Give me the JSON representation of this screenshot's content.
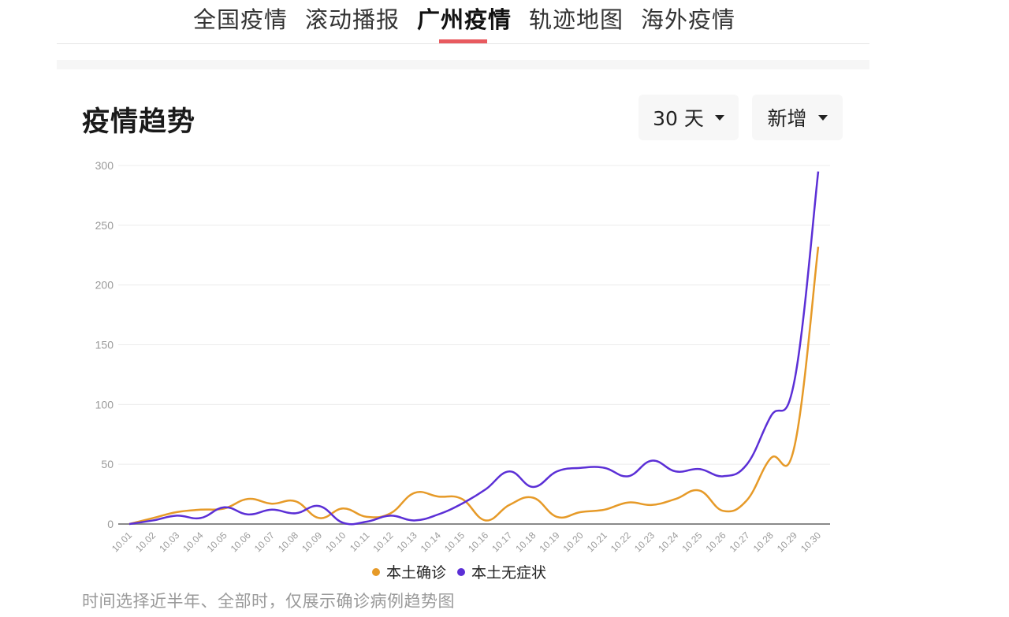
{
  "tabs": [
    {
      "label": "全国疫情",
      "active": false
    },
    {
      "label": "滚动播报",
      "active": false
    },
    {
      "label": "广州疫情",
      "active": true
    },
    {
      "label": "轨迹地图",
      "active": false
    },
    {
      "label": "海外疫情",
      "active": false
    }
  ],
  "section": {
    "title": "疫情趋势",
    "range_dropdown": "30 天",
    "type_dropdown": "新增"
  },
  "colors": {
    "confirmed": "#e69a28",
    "asymptomatic": "#5b2fd6",
    "active_tab": "#e85a5f"
  },
  "legend": [
    {
      "label": "本土确诊",
      "color": "#e69a28"
    },
    {
      "label": "本土无症状",
      "color": "#5b2fd6"
    }
  ],
  "note": "时间选择近半年、全部时，仅展示确诊病例趋势图",
  "chart_data": {
    "type": "line",
    "title": "疫情趋势",
    "xlabel": "",
    "ylabel": "",
    "ylim": [
      0,
      300
    ],
    "yticks": [
      0,
      50,
      100,
      150,
      200,
      250,
      300
    ],
    "grid": true,
    "legend_position": "bottom",
    "categories": [
      "10.01",
      "10.02",
      "10.03",
      "10.04",
      "10.05",
      "10.06",
      "10.07",
      "10.08",
      "10.09",
      "10.10",
      "10.11",
      "10.12",
      "10.13",
      "10.14",
      "10.15",
      "10.16",
      "10.17",
      "10.18",
      "10.19",
      "10.20",
      "10.21",
      "10.22",
      "10.23",
      "10.24",
      "10.25",
      "10.26",
      "10.27",
      "10.28",
      "10.29",
      "10.30"
    ],
    "series": [
      {
        "name": "本土确诊",
        "color": "#e69a28",
        "values": [
          0,
          5,
          10,
          12,
          13,
          21,
          17,
          19,
          5,
          13,
          6,
          9,
          26,
          23,
          21,
          3,
          16,
          22,
          6,
          10,
          12,
          18,
          16,
          21,
          28,
          11,
          20,
          55,
          65,
          232
        ]
      },
      {
        "name": "本土无症状",
        "color": "#5b2fd6",
        "values": [
          0,
          3,
          7,
          5,
          14,
          8,
          12,
          9,
          15,
          1,
          2,
          7,
          3,
          8,
          17,
          29,
          44,
          31,
          44,
          47,
          47,
          40,
          53,
          44,
          46,
          40,
          50,
          90,
          120,
          295
        ]
      }
    ]
  }
}
